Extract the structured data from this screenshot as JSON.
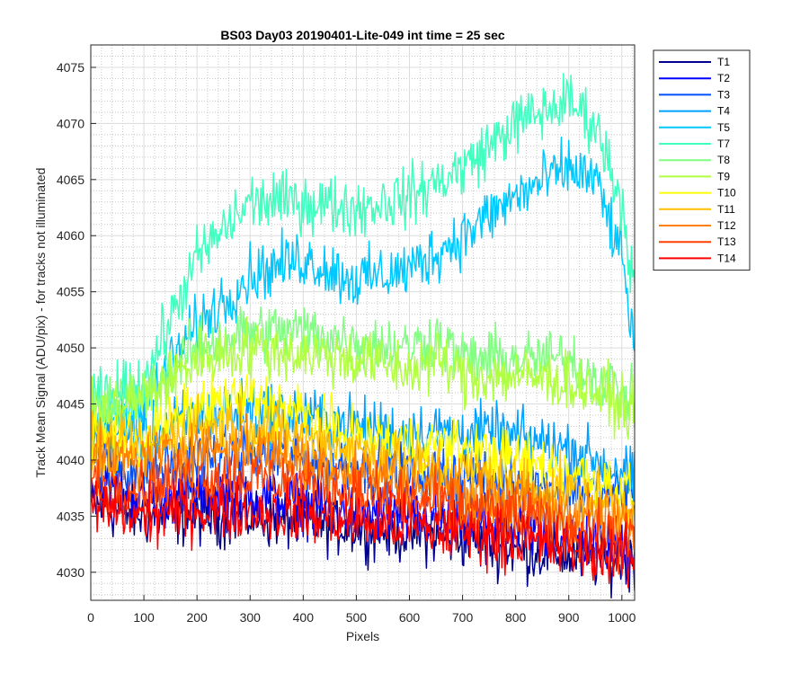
{
  "chart_data": {
    "type": "line",
    "title": "BS03 Day03 20190401-Lite-049 int time = 25 sec",
    "xlabel": "Pixels",
    "ylabel": "Track Mean Signal (ADU/pix) - for tracks not illuminated",
    "xlim": [
      0,
      1024
    ],
    "ylim": [
      4027.5,
      4077
    ],
    "x_ticks": [
      0,
      100,
      200,
      300,
      400,
      500,
      600,
      700,
      800,
      900,
      1000
    ],
    "y_ticks": [
      4030,
      4035,
      4040,
      4045,
      4050,
      4055,
      4060,
      4065,
      4070,
      4075
    ],
    "grid": "on (major and minor)",
    "legend_position": "outside-right",
    "series": [
      {
        "name": "T1",
        "color": "#00008f",
        "x": [
          0,
          100,
          200,
          300,
          400,
          500,
          600,
          700,
          800,
          900,
          1000,
          1024
        ],
        "values": [
          4036,
          4035,
          4035,
          4035,
          4034.5,
          4034,
          4033.5,
          4033,
          4032,
          4031.5,
          4031,
          4031
        ]
      },
      {
        "name": "T2",
        "color": "#0000ff",
        "x": [
          0,
          100,
          200,
          300,
          400,
          500,
          600,
          700,
          800,
          900,
          1000,
          1024
        ],
        "values": [
          4038,
          4036.5,
          4037,
          4037,
          4036,
          4035.5,
          4035,
          4034.5,
          4034,
          4033,
          4032.5,
          4032
        ]
      },
      {
        "name": "T3",
        "color": "#0050ff",
        "x": [
          0,
          100,
          200,
          300,
          400,
          500,
          600,
          700,
          800,
          900,
          1000,
          1024
        ],
        "values": [
          4040,
          4039,
          4040,
          4040.5,
          4040,
          4039.5,
          4039,
          4038.5,
          4038,
          4037.5,
          4037,
          4036.5
        ]
      },
      {
        "name": "T4",
        "color": "#00a0ff",
        "x": [
          0,
          100,
          200,
          300,
          400,
          500,
          600,
          700,
          800,
          900,
          1000,
          1024
        ],
        "values": [
          4043,
          4042,
          4044,
          4044.5,
          4044,
          4043,
          4042.5,
          4042.5,
          4042,
          4041,
          4039,
          4038
        ]
      },
      {
        "name": "T5",
        "color": "#00c8ff",
        "x": [
          0,
          100,
          200,
          300,
          400,
          500,
          600,
          700,
          800,
          900,
          950,
          1000,
          1024
        ],
        "values": [
          4043,
          4045,
          4052,
          4056.5,
          4058,
          4056,
          4057,
          4060,
          4063.5,
          4066,
          4065,
          4058,
          4050
        ]
      },
      {
        "name": "T7",
        "color": "#40ffbf",
        "x": [
          0,
          100,
          200,
          300,
          400,
          500,
          600,
          700,
          800,
          900,
          950,
          1000,
          1024
        ],
        "values": [
          4045,
          4047,
          4058,
          4063,
          4063,
          4062.5,
          4063.5,
          4066,
          4070,
          4072,
          4070,
          4063,
          4055
        ]
      },
      {
        "name": "T8",
        "color": "#80ff80",
        "x": [
          0,
          100,
          200,
          300,
          400,
          500,
          600,
          650,
          700,
          800,
          900,
          1000,
          1024
        ],
        "values": [
          4044,
          4046,
          4050,
          4051.5,
          4051.5,
          4050.5,
          4050,
          4051,
          4049,
          4049,
          4049,
          4046,
          4045
        ]
      },
      {
        "name": "T9",
        "color": "#b0ff40",
        "x": [
          0,
          100,
          200,
          300,
          400,
          500,
          600,
          650,
          700,
          800,
          900,
          1000,
          1024
        ],
        "values": [
          4044,
          4045.5,
          4049,
          4050,
          4049.5,
          4049,
          4048,
          4049,
          4047.5,
          4047.5,
          4047,
          4045,
          4044
        ]
      },
      {
        "name": "T10",
        "color": "#ffff00",
        "x": [
          0,
          100,
          200,
          300,
          400,
          500,
          600,
          700,
          800,
          900,
          1000,
          1024
        ],
        "values": [
          4042,
          4042,
          4044.5,
          4045.5,
          4044,
          4042,
          4041.5,
          4041,
          4040,
          4039,
          4037.5,
          4037
        ]
      },
      {
        "name": "T11",
        "color": "#ffbf00",
        "x": [
          0,
          100,
          200,
          300,
          400,
          500,
          600,
          700,
          800,
          900,
          1000,
          1024
        ],
        "values": [
          4041,
          4041,
          4043,
          4043,
          4042,
          4041,
          4039.5,
          4039,
          4038,
          4037,
          4036,
          4035.5
        ]
      },
      {
        "name": "T12",
        "color": "#ff8000",
        "x": [
          0,
          100,
          200,
          300,
          400,
          500,
          600,
          700,
          800,
          900,
          1000,
          1024
        ],
        "values": [
          4040,
          4040,
          4041,
          4041,
          4040,
          4039,
          4038,
          4037,
          4036.5,
          4035.5,
          4034.5,
          4034
        ]
      },
      {
        "name": "T13",
        "color": "#ff4000",
        "x": [
          0,
          100,
          200,
          300,
          400,
          500,
          600,
          700,
          800,
          900,
          1000,
          1024
        ],
        "values": [
          4038,
          4037.5,
          4038.5,
          4038.5,
          4038,
          4037,
          4036.5,
          4035.5,
          4035,
          4034,
          4033,
          4033
        ]
      },
      {
        "name": "T14",
        "color": "#ff0000",
        "x": [
          0,
          100,
          200,
          300,
          400,
          500,
          600,
          700,
          800,
          900,
          1000,
          1024
        ],
        "values": [
          4036,
          4035,
          4035.5,
          4035.5,
          4035,
          4034.5,
          4034,
          4033.5,
          4033,
          4032,
          4031.5,
          4031
        ]
      }
    ]
  }
}
